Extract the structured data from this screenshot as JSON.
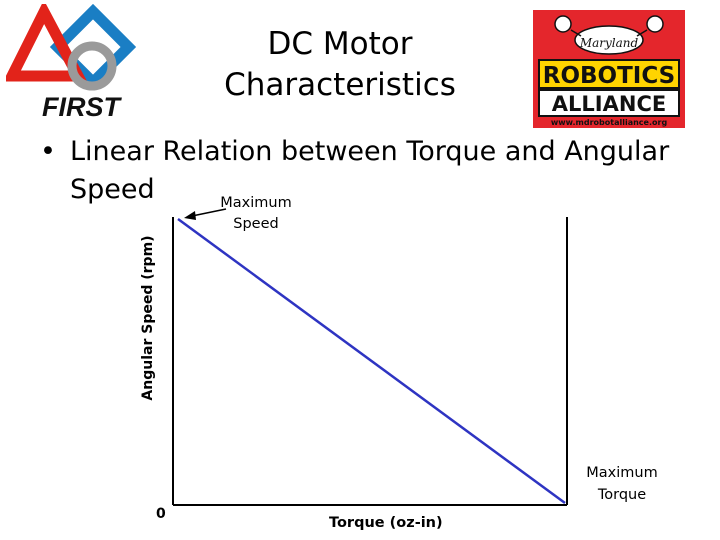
{
  "slide": {
    "title_line1": "DC Motor",
    "title_line2": "Characteristics",
    "bullet_symbol": "•",
    "bullet_line1": "Linear Relation between Torque and Angular",
    "bullet_line2": "Speed"
  },
  "annotations": {
    "max_speed_line1": "Maximum",
    "max_speed_line2": "Speed",
    "max_torque_line1": "Maximum",
    "max_torque_line2": "Torque"
  },
  "axes": {
    "ylabel": "Angular Speed (rpm)",
    "xlabel": "Torque (oz-in)",
    "origin_label": "0"
  },
  "logos": {
    "first_text": "FIRST",
    "mra_maryland": "Maryland",
    "mra_robotics": "ROBOTICS",
    "mra_alliance": "ALLIANCE",
    "mra_url": "www.mdrobotalliance.org"
  },
  "colors": {
    "line": "#2e34c2",
    "axis": "#000000",
    "first_red": "#e2231a",
    "first_blue": "#1a7ec4",
    "mra_red": "#e4262c",
    "mra_yellow": "#ffd400"
  }
}
